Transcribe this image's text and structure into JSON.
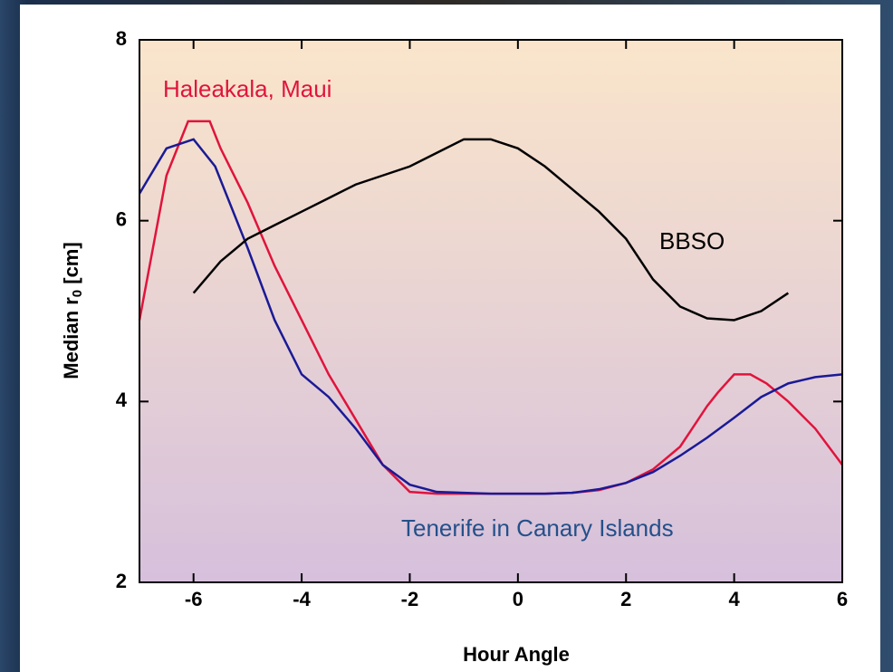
{
  "chart_data": {
    "type": "line",
    "x_label": "Hour Angle",
    "y_label": [
      "Median r",
      "0",
      " [cm]"
    ],
    "xlim": [
      -7,
      6
    ],
    "xticks": [
      -6,
      -4,
      -2,
      0,
      2,
      4,
      6
    ],
    "ylim": [
      2,
      8
    ],
    "yticks": [
      2,
      4,
      6,
      8
    ],
    "series": [
      {
        "name": "Haleakala, Maui",
        "color": "#e0143c",
        "x": [
          -7,
          -6.5,
          -6.1,
          -5.7,
          -5.5,
          -5,
          -4.5,
          -4,
          -3.5,
          -3,
          -2.5,
          -2,
          -1.5,
          -1,
          -0.5,
          0,
          0.5,
          1,
          1.5,
          2,
          2.5,
          3,
          3.5,
          3.7,
          4,
          4.3,
          4.6,
          5,
          5.5,
          6
        ],
        "values": [
          4.9,
          6.5,
          7.1,
          7.1,
          6.8,
          6.2,
          5.5,
          4.9,
          4.3,
          3.8,
          3.3,
          3.0,
          2.98,
          2.98,
          2.98,
          2.98,
          2.98,
          2.99,
          3.02,
          3.1,
          3.25,
          3.5,
          3.95,
          4.1,
          4.3,
          4.3,
          4.2,
          4.0,
          3.7,
          3.3
        ]
      },
      {
        "name": "Tenerife in Canary Islands",
        "color": "#1a1a96",
        "x": [
          -7,
          -6.5,
          -6,
          -5.6,
          -5,
          -4.5,
          -4,
          -3.5,
          -3,
          -2.5,
          -2,
          -1.5,
          -1,
          -0.5,
          0,
          0.5,
          1,
          1.5,
          2,
          2.5,
          3,
          3.5,
          4,
          4.5,
          5,
          5.5,
          6
        ],
        "values": [
          6.3,
          6.8,
          6.9,
          6.6,
          5.7,
          4.9,
          4.3,
          4.05,
          3.7,
          3.3,
          3.08,
          3.0,
          2.99,
          2.98,
          2.98,
          2.98,
          2.99,
          3.03,
          3.1,
          3.22,
          3.4,
          3.6,
          3.82,
          4.05,
          4.2,
          4.27,
          4.3
        ]
      },
      {
        "name": "BBSO",
        "color": "#000000",
        "x": [
          -6,
          -5.5,
          -5,
          -4.5,
          -4,
          -3.5,
          -3,
          -2.5,
          -2,
          -1.5,
          -1,
          -0.5,
          0,
          0.5,
          1,
          1.5,
          2,
          2.5,
          3,
          3.5,
          4,
          4.5,
          5
        ],
        "values": [
          5.2,
          5.55,
          5.8,
          5.95,
          6.1,
          6.25,
          6.4,
          6.5,
          6.6,
          6.75,
          6.9,
          6.9,
          6.8,
          6.6,
          6.35,
          6.1,
          5.8,
          5.35,
          5.05,
          4.92,
          4.9,
          5.0,
          5.2
        ]
      }
    ]
  }
}
